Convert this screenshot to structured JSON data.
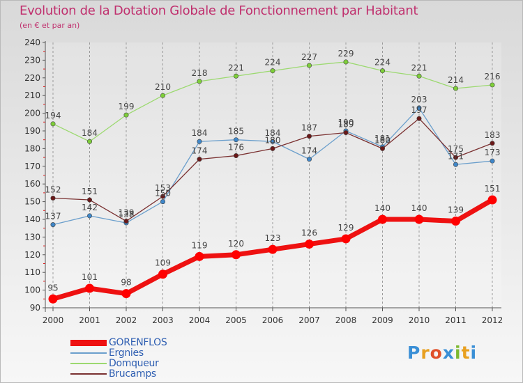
{
  "title": "Evolution de la Dotation Globale de Fonctionnement par Habitant",
  "subtitle": "(en € et par an)",
  "logo": {
    "text": "Proxiti",
    "colors": [
      "#3a8fd6",
      "#e8a020",
      "#e0502a",
      "#3a8fd6",
      "#7cb82f",
      "#e8a020",
      "#3a8fd6"
    ]
  },
  "chart_data": {
    "type": "line",
    "x": [
      "2000",
      "2001",
      "2002",
      "2003",
      "2004",
      "2005",
      "2006",
      "2007",
      "2008",
      "2009",
      "2010",
      "2011",
      "2012"
    ],
    "ylim": [
      90,
      240
    ],
    "yticks": [
      90,
      100,
      110,
      120,
      130,
      140,
      150,
      160,
      170,
      180,
      190,
      200,
      210,
      220,
      230,
      240
    ],
    "grid": "vertical dashed",
    "legend_position": "bottom-left",
    "series": [
      {
        "name": "GORENFLOS",
        "color": "#ff0000",
        "line_color": "#ee1111",
        "values": [
          95,
          101,
          98,
          109,
          119,
          120,
          123,
          126,
          129,
          140,
          140,
          139,
          151
        ]
      },
      {
        "name": "Ergnies",
        "color": "#3f87c9",
        "line_color": "#6b9fcc",
        "values": [
          137,
          142,
          138,
          150,
          184,
          185,
          184,
          174,
          190,
          181,
          203,
          171,
          173
        ]
      },
      {
        "name": "Domqueur",
        "color": "#7ecf39",
        "line_color": "#9cd970",
        "values": [
          194,
          184,
          199,
          210,
          218,
          221,
          224,
          227,
          229,
          224,
          221,
          214,
          216
        ]
      },
      {
        "name": "Brucamps",
        "color": "#6a1818",
        "line_color": "#7a3030",
        "values": [
          152,
          151,
          139,
          153,
          174,
          176,
          180,
          187,
          189,
          180,
          197,
          175,
          183
        ]
      }
    ]
  }
}
